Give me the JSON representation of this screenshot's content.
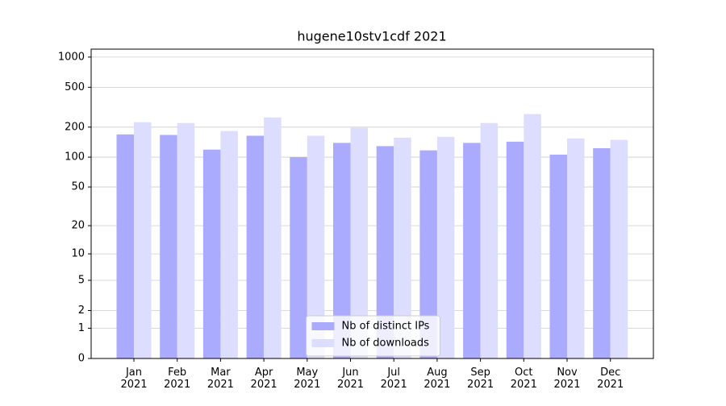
{
  "chart_data": {
    "type": "bar",
    "title": "hugene10stv1cdf 2021",
    "categories": [
      "Jan\n2021",
      "Feb\n2021",
      "Mar\n2021",
      "Apr\n2021",
      "May\n2021",
      "Jun\n2021",
      "Jul\n2021",
      "Aug\n2021",
      "Sep\n2021",
      "Oct\n2021",
      "Nov\n2021",
      "Dec\n2021"
    ],
    "series": [
      {
        "name": "Nb of distinct IPs",
        "color": "#aaaaff",
        "values": [
          169,
          167,
          119,
          164,
          100,
          139,
          129,
          117,
          139,
          143,
          106,
          123
        ]
      },
      {
        "name": "Nb of downloads",
        "color": "#ddddff",
        "values": [
          224,
          220,
          183,
          250,
          164,
          197,
          157,
          160,
          220,
          270,
          154,
          149
        ]
      }
    ],
    "yscale": "log1p",
    "ylim": [
      0,
      1200
    ],
    "yticks": [
      0,
      1,
      2,
      5,
      10,
      20,
      50,
      100,
      200,
      500,
      1000
    ],
    "grid": true,
    "legend": "lower center"
  }
}
